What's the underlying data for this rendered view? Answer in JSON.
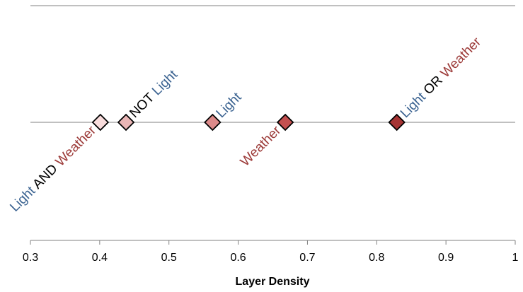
{
  "chart_data": {
    "type": "scatter",
    "title": "",
    "xlabel": "Layer Density",
    "ylabel": "",
    "xlim": [
      0.3,
      1.0
    ],
    "x_ticks": [
      "0.3",
      "0.4",
      "0.5",
      "0.6",
      "0.7",
      "0.8",
      "0.9",
      "1"
    ],
    "grid": "horizontal lines at top and center",
    "colors": {
      "light_word": "#3b6391",
      "weather_word": "#9c3a38",
      "operator_word": "#000000",
      "axis": "#808080",
      "marker_stroke": "#000000"
    },
    "points": [
      {
        "x": 0.401,
        "fill": "#f8dcdc",
        "label_parts": [
          {
            "text": "Light",
            "role": "light"
          },
          {
            "text": " AND ",
            "role": "operator"
          },
          {
            "text": "Weather",
            "role": "weather"
          }
        ],
        "label_side": "below"
      },
      {
        "x": 0.438,
        "fill": "#eab6b6",
        "label_parts": [
          {
            "text": "NOT ",
            "role": "operator"
          },
          {
            "text": "Light",
            "role": "light"
          }
        ],
        "label_side": "above"
      },
      {
        "x": 0.563,
        "fill": "#dc8a8a",
        "label_parts": [
          {
            "text": "Light",
            "role": "light"
          }
        ],
        "label_side": "above"
      },
      {
        "x": 0.668,
        "fill": "#c45050",
        "label_parts": [
          {
            "text": "Weather",
            "role": "weather"
          }
        ],
        "label_side": "below"
      },
      {
        "x": 0.829,
        "fill": "#a63434",
        "label_parts": [
          {
            "text": "Light",
            "role": "light"
          },
          {
            "text": " OR ",
            "role": "operator"
          },
          {
            "text": "Weather",
            "role": "weather"
          }
        ],
        "label_side": "above"
      }
    ]
  }
}
